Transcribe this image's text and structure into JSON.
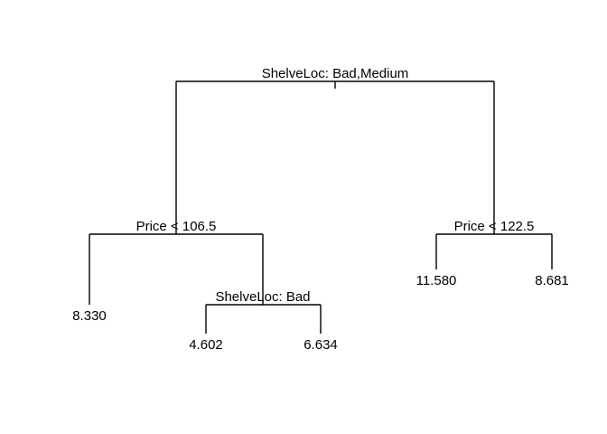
{
  "tree": {
    "nodes": [
      {
        "id": "root",
        "type": "split",
        "label": "ShelveLoc: Bad,Medium",
        "left": "n_price1065",
        "right": "n_price1225"
      },
      {
        "id": "n_price1065",
        "type": "split",
        "label": "Price < 106.5",
        "left": "leaf_8330",
        "right": "n_shelvebad"
      },
      {
        "id": "n_shelvebad",
        "type": "split",
        "label": "ShelveLoc: Bad",
        "left": "leaf_4602",
        "right": "leaf_6634"
      },
      {
        "id": "n_price1225",
        "type": "split",
        "label": "Price < 122.5",
        "left": "leaf_11580",
        "right": "leaf_8681"
      },
      {
        "id": "leaf_8330",
        "type": "leaf",
        "label": "8.330"
      },
      {
        "id": "leaf_4602",
        "type": "leaf",
        "label": "4.602"
      },
      {
        "id": "leaf_6634",
        "type": "leaf",
        "label": "6.634"
      },
      {
        "id": "leaf_11580",
        "type": "leaf",
        "label": "11.580"
      },
      {
        "id": "leaf_8681",
        "type": "leaf",
        "label": "8.681"
      }
    ]
  }
}
